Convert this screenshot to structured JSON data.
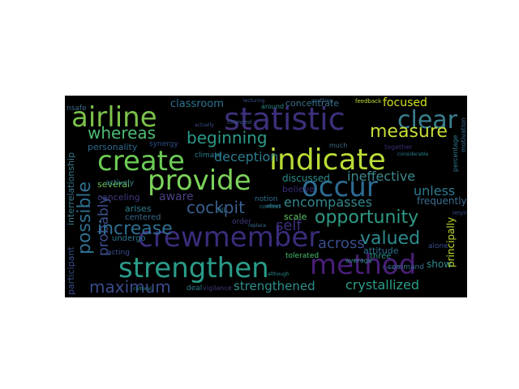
{
  "wordcloud": {
    "words": [
      {
        "text": "airline",
        "color": "#7cc24a"
      },
      {
        "text": "statistic",
        "color": "#3e2f7a"
      },
      {
        "text": "clear",
        "color": "#3a7f8f"
      },
      {
        "text": "create",
        "color": "#6ccb55"
      },
      {
        "text": "indicate",
        "color": "#b9dd36"
      },
      {
        "text": "provide",
        "color": "#7cd35a"
      },
      {
        "text": "occur",
        "color": "#2d6c93"
      },
      {
        "text": "crewmember",
        "color": "#3b2c7c"
      },
      {
        "text": "strengthen",
        "color": "#2a9c89"
      },
      {
        "text": "method",
        "color": "#4a1e78"
      },
      {
        "text": "possible",
        "color": "#2f6f90"
      },
      {
        "text": "probably",
        "color": "#3a4f8c"
      },
      {
        "text": "opportunity",
        "color": "#2f9a87"
      },
      {
        "text": "measure",
        "color": "#c8de36"
      },
      {
        "text": "whereas",
        "color": "#4cbc72"
      },
      {
        "text": "beginning",
        "color": "#2a9a88"
      },
      {
        "text": "deception",
        "color": "#2e7d91"
      },
      {
        "text": "cockpit",
        "color": "#3a5f8e"
      },
      {
        "text": "increase",
        "color": "#2f6f92"
      },
      {
        "text": "valued",
        "color": "#2e8a8d"
      },
      {
        "text": "maximum",
        "color": "#3a4b8a"
      },
      {
        "text": "strengthened",
        "color": "#2e8f8c"
      },
      {
        "text": "crystallized",
        "color": "#2a9e88"
      },
      {
        "text": "self",
        "color": "#3b2f7a"
      },
      {
        "text": "across",
        "color": "#3a4e8b"
      },
      {
        "text": "encompasses",
        "color": "#33888d"
      },
      {
        "text": "ineffective",
        "color": "#3a8a8d"
      },
      {
        "text": "unless",
        "color": "#2e7a90"
      },
      {
        "text": "classroom",
        "color": "#2b7590"
      },
      {
        "text": "focused",
        "color": "#d2e21b"
      },
      {
        "text": "concentrate",
        "color": "#3a6f8f"
      },
      {
        "text": "personality",
        "color": "#2f6b8f"
      },
      {
        "text": "aware",
        "color": "#4a3f82"
      },
      {
        "text": "several",
        "color": "#6cc45a"
      },
      {
        "text": "canceling",
        "color": "#3f3a80"
      },
      {
        "text": "arises",
        "color": "#2f7f8f"
      },
      {
        "text": "centered",
        "color": "#3a6a8c"
      },
      {
        "text": "discussed",
        "color": "#2a8b8c"
      },
      {
        "text": "believe",
        "color": "#3a2d78"
      },
      {
        "text": "frequently",
        "color": "#3a6e8f"
      },
      {
        "text": "scale",
        "color": "#5fc566"
      },
      {
        "text": "attitude",
        "color": "#2e6f90"
      },
      {
        "text": "show",
        "color": "#2f8c8c"
      },
      {
        "text": "principally",
        "color": "#c2df33"
      },
      {
        "text": "participant",
        "color": "#3a4e8a"
      },
      {
        "text": "interrelationship",
        "color": "#3a7a90"
      },
      {
        "text": "actively",
        "color": "#3a8a8c"
      },
      {
        "text": "synergy",
        "color": "#2f4f8a"
      },
      {
        "text": "climate",
        "color": "#2a7f90"
      },
      {
        "text": "notion",
        "color": "#2e6f90"
      },
      {
        "text": "order",
        "color": "#3b3a7e"
      },
      {
        "text": "undergo",
        "color": "#2e7a90"
      },
      {
        "text": "acting",
        "color": "#3a4c8a"
      },
      {
        "text": "tolerated",
        "color": "#4ac170"
      },
      {
        "text": "command",
        "color": "#3a6e8f"
      },
      {
        "text": "average",
        "color": "#2e8a8c"
      },
      {
        "text": "three",
        "color": "#2b8e8b"
      },
      {
        "text": "alone",
        "color": "#3a4f8b"
      },
      {
        "text": "deal",
        "color": "#2f7c90"
      },
      {
        "text": "vigilance",
        "color": "#3b3a7e"
      },
      {
        "text": "fill",
        "color": "#2f7b90"
      },
      {
        "text": "changed",
        "color": "#3a5a8c"
      },
      {
        "text": "around",
        "color": "#2d8a8c"
      },
      {
        "text": "much",
        "color": "#3a6f8f"
      },
      {
        "text": "together",
        "color": "#3a2d78"
      },
      {
        "text": "feedback",
        "color": "#c4df33"
      },
      {
        "text": "motivation",
        "color": "#3a6e8f"
      },
      {
        "text": "percentage",
        "color": "#2e7a90"
      },
      {
        "text": "relying",
        "color": "#3a4c8a"
      },
      {
        "text": "nsafe",
        "color": "#3a6e8f"
      },
      {
        "text": "cultural",
        "color": "#2a8a8c"
      },
      {
        "text": "context",
        "color": "#2e7a90"
      },
      {
        "text": "lecturing",
        "color": "#3a4f8b"
      },
      {
        "text": "anything",
        "color": "#3a6e8f"
      },
      {
        "text": "although",
        "color": "#2e8a8c"
      },
      {
        "text": "considerable",
        "color": "#2a7f90"
      },
      {
        "text": "toward",
        "color": "#3a4c8a"
      },
      {
        "text": "replace",
        "color": "#3a6e8f"
      },
      {
        "text": "allows",
        "color": "#2e7a90"
      },
      {
        "text": "actually",
        "color": "#3a4f8b"
      }
    ]
  }
}
